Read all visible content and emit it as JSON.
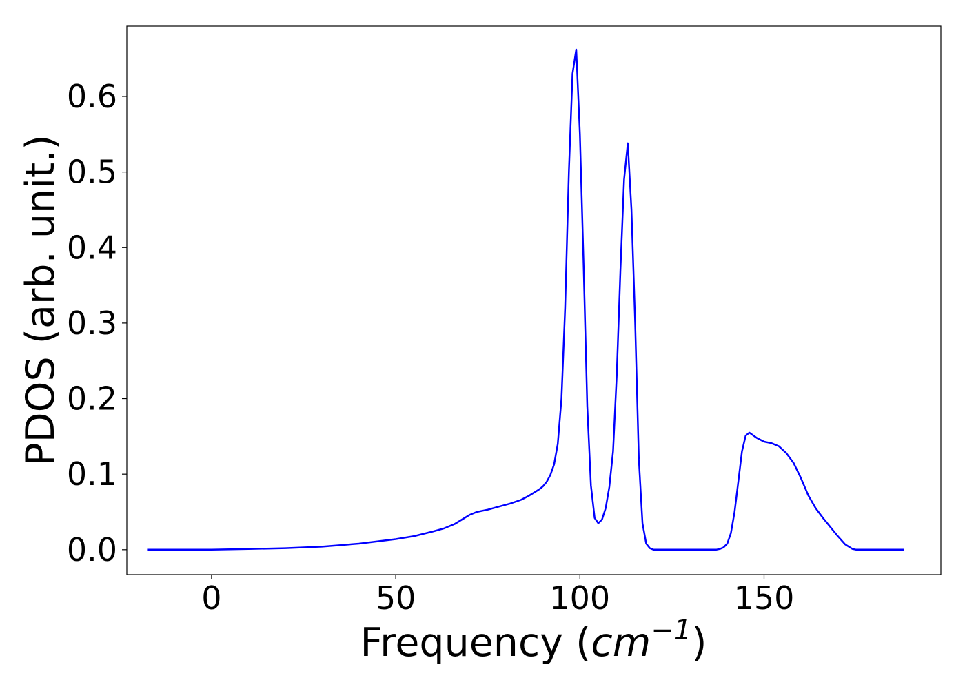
{
  "chart_data": {
    "type": "line",
    "title": "",
    "xlabel": "Frequency (cm⁻¹)",
    "xlabel_parts": {
      "prefix": "Frequency (",
      "unit_italic": "cm",
      "exponent": "−1",
      "suffix": ")"
    },
    "ylabel": "PDOS (arb. unit.)",
    "xlim": [
      -23,
      198
    ],
    "ylim": [
      -0.033,
      0.693
    ],
    "xticks": [
      0,
      50,
      100,
      150
    ],
    "xtick_labels": [
      "0",
      "50",
      "100",
      "150"
    ],
    "yticks": [
      0.0,
      0.1,
      0.2,
      0.3,
      0.4,
      0.5,
      0.6
    ],
    "ytick_labels": [
      "0.0",
      "0.1",
      "0.2",
      "0.3",
      "0.4",
      "0.5",
      "0.6"
    ],
    "grid": false,
    "legend": "none",
    "series": [
      {
        "color": "#0000ff",
        "x": [
          -17.5,
          0,
          5,
          10,
          15,
          20,
          25,
          30,
          35,
          40,
          45,
          50,
          55,
          60,
          63,
          66,
          68,
          70,
          72,
          75,
          78,
          81,
          84,
          86,
          88,
          89,
          90,
          91,
          92,
          93,
          94,
          95,
          96,
          97,
          98,
          99,
          100,
          101,
          102,
          103,
          104,
          105,
          106,
          107,
          108,
          109,
          110,
          111,
          112,
          113,
          114,
          115,
          116,
          117,
          118,
          119,
          120,
          125,
          130,
          135,
          137,
          138,
          139,
          140,
          141,
          142,
          143,
          144,
          145,
          146,
          148,
          150,
          152,
          154,
          156,
          158,
          160,
          162,
          164,
          166,
          168,
          170,
          172,
          174,
          175,
          176,
          178,
          182,
          188
        ],
        "y": [
          0.0,
          0.0,
          0.0005,
          0.001,
          0.0015,
          0.002,
          0.003,
          0.004,
          0.006,
          0.008,
          0.011,
          0.014,
          0.018,
          0.024,
          0.028,
          0.034,
          0.04,
          0.046,
          0.05,
          0.053,
          0.057,
          0.061,
          0.066,
          0.071,
          0.077,
          0.08,
          0.084,
          0.09,
          0.099,
          0.113,
          0.14,
          0.2,
          0.32,
          0.5,
          0.63,
          0.662,
          0.55,
          0.38,
          0.19,
          0.085,
          0.042,
          0.035,
          0.04,
          0.055,
          0.083,
          0.13,
          0.23,
          0.37,
          0.49,
          0.538,
          0.45,
          0.3,
          0.12,
          0.035,
          0.008,
          0.002,
          0.0,
          0.0,
          0.0,
          0.0,
          0.0,
          0.001,
          0.003,
          0.008,
          0.022,
          0.05,
          0.09,
          0.13,
          0.151,
          0.155,
          0.148,
          0.143,
          0.141,
          0.137,
          0.128,
          0.115,
          0.095,
          0.072,
          0.055,
          0.042,
          0.03,
          0.018,
          0.007,
          0.001,
          0.0,
          0.0,
          0.0,
          0.0,
          0.0
        ]
      }
    ]
  }
}
